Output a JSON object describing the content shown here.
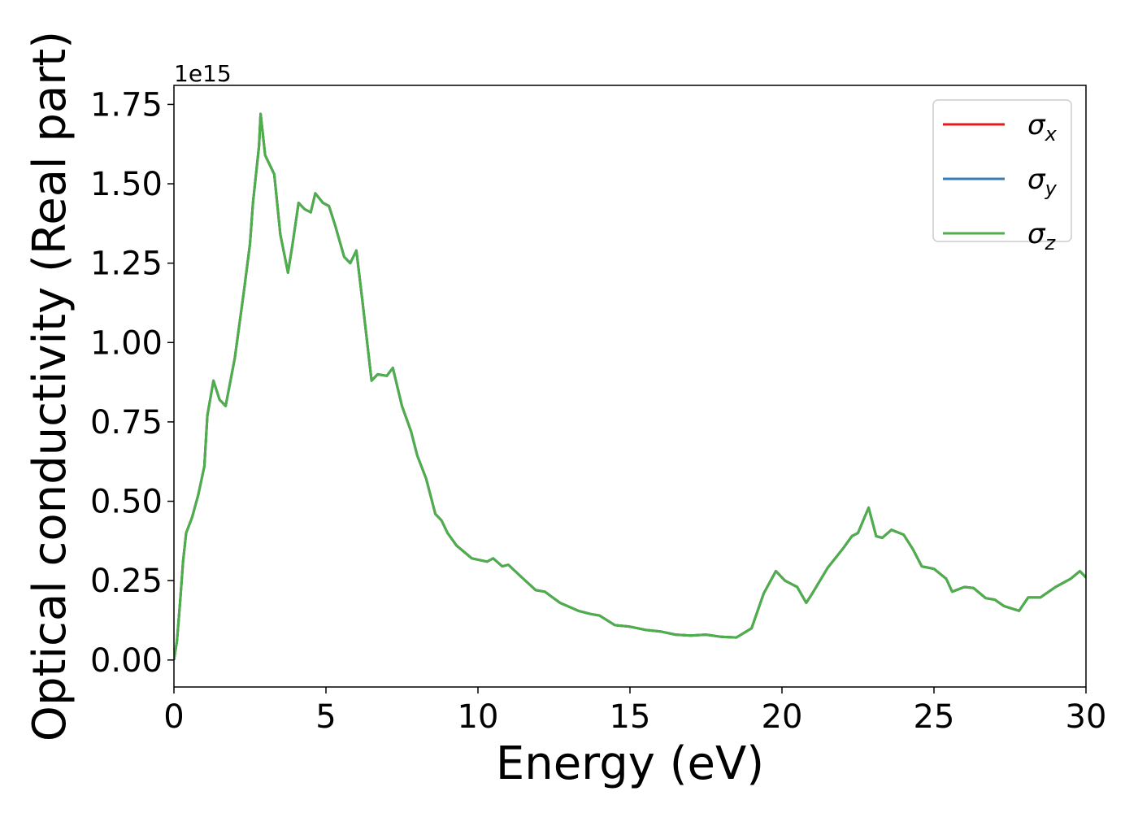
{
  "chart_data": {
    "type": "line",
    "xlabel": "Energy (eV)",
    "ylabel": "Optical conductivity (Real part)",
    "y_offset_label": "1e15",
    "xlim": [
      0,
      30
    ],
    "ylim": [
      -0.085,
      1.81
    ],
    "xticks": [
      0,
      5,
      10,
      15,
      20,
      25,
      30
    ],
    "yticks": [
      {
        "value": 0,
        "label": "0.00"
      },
      {
        "value": 0.25,
        "label": "0.25"
      },
      {
        "value": 0.5,
        "label": "0.50"
      },
      {
        "value": 0.75,
        "label": "0.75"
      },
      {
        "value": 1,
        "label": "1.00"
      },
      {
        "value": 1.25,
        "label": "1.25"
      },
      {
        "value": 1.5,
        "label": "1.50"
      },
      {
        "value": 1.75,
        "label": "1.75"
      }
    ],
    "legend": "upper right",
    "grid": false,
    "x": [
      0,
      0.1,
      0.2,
      0.3,
      0.4,
      0.6,
      0.8,
      1.0,
      1.1,
      1.3,
      1.5,
      1.7,
      2.0,
      2.3,
      2.5,
      2.6,
      2.8,
      2.85,
      3.0,
      3.1,
      3.3,
      3.5,
      3.75,
      3.9,
      4.1,
      4.3,
      4.5,
      4.65,
      4.9,
      5.1,
      5.3,
      5.6,
      5.8,
      6.0,
      6.2,
      6.5,
      6.7,
      7.0,
      7.2,
      7.5,
      7.8,
      8.0,
      8.3,
      8.6,
      8.8,
      9.0,
      9.3,
      9.8,
      10.3,
      10.5,
      10.8,
      11.0,
      11.5,
      11.9,
      12.2,
      12.7,
      13.3,
      13.7,
      14.0,
      14.5,
      15.0,
      15.5,
      16.0,
      16.5,
      17.0,
      17.5,
      18.0,
      18.5,
      19.0,
      19.4,
      19.8,
      20.1,
      20.5,
      20.8,
      21.0,
      21.5,
      22.0,
      22.3,
      22.5,
      22.85,
      23.1,
      23.3,
      23.6,
      24.0,
      24.3,
      24.6,
      25.0,
      25.4,
      25.6,
      26.0,
      26.3,
      26.7,
      27.0,
      27.3,
      27.8,
      28.1,
      28.5,
      29.0,
      29.5,
      29.8,
      30.0
    ],
    "series": [
      {
        "name": "σx",
        "color": "#e41a1c",
        "values": [
          0,
          0.06,
          0.18,
          0.31,
          0.4,
          0.45,
          0.52,
          0.61,
          0.77,
          0.88,
          0.82,
          0.8,
          0.95,
          1.16,
          1.31,
          1.44,
          1.62,
          1.72,
          1.59,
          1.57,
          1.53,
          1.34,
          1.22,
          1.31,
          1.44,
          1.42,
          1.41,
          1.47,
          1.44,
          1.43,
          1.37,
          1.27,
          1.25,
          1.29,
          1.13,
          0.88,
          0.9,
          0.895,
          0.92,
          0.8,
          0.72,
          0.645,
          0.57,
          0.46,
          0.44,
          0.4,
          0.36,
          0.32,
          0.31,
          0.32,
          0.295,
          0.3,
          0.255,
          0.22,
          0.215,
          0.18,
          0.155,
          0.145,
          0.14,
          0.11,
          0.105,
          0.095,
          0.09,
          0.08,
          0.077,
          0.08,
          0.073,
          0.071,
          0.1,
          0.21,
          0.28,
          0.25,
          0.23,
          0.18,
          0.21,
          0.29,
          0.35,
          0.39,
          0.4,
          0.48,
          0.39,
          0.385,
          0.41,
          0.395,
          0.35,
          0.295,
          0.287,
          0.256,
          0.215,
          0.23,
          0.227,
          0.195,
          0.19,
          0.17,
          0.155,
          0.197,
          0.197,
          0.23,
          0.256,
          0.28,
          0.26
        ]
      },
      {
        "name": "σy",
        "color": "#377eb8",
        "values": [
          0,
          0.06,
          0.18,
          0.31,
          0.4,
          0.45,
          0.52,
          0.61,
          0.77,
          0.88,
          0.82,
          0.8,
          0.95,
          1.16,
          1.31,
          1.44,
          1.62,
          1.72,
          1.59,
          1.57,
          1.53,
          1.34,
          1.22,
          1.31,
          1.44,
          1.42,
          1.41,
          1.47,
          1.44,
          1.43,
          1.37,
          1.27,
          1.25,
          1.29,
          1.13,
          0.88,
          0.9,
          0.895,
          0.92,
          0.8,
          0.72,
          0.645,
          0.57,
          0.46,
          0.44,
          0.4,
          0.36,
          0.32,
          0.31,
          0.32,
          0.295,
          0.3,
          0.255,
          0.22,
          0.215,
          0.18,
          0.155,
          0.145,
          0.14,
          0.11,
          0.105,
          0.095,
          0.09,
          0.08,
          0.077,
          0.08,
          0.073,
          0.071,
          0.1,
          0.21,
          0.28,
          0.25,
          0.23,
          0.18,
          0.21,
          0.29,
          0.35,
          0.39,
          0.4,
          0.48,
          0.39,
          0.385,
          0.41,
          0.395,
          0.35,
          0.295,
          0.287,
          0.256,
          0.215,
          0.23,
          0.227,
          0.195,
          0.19,
          0.17,
          0.155,
          0.197,
          0.197,
          0.23,
          0.256,
          0.28,
          0.26
        ]
      },
      {
        "name": "σz",
        "color": "#4daf4a",
        "values": [
          0,
          0.06,
          0.18,
          0.31,
          0.4,
          0.45,
          0.52,
          0.61,
          0.77,
          0.88,
          0.82,
          0.8,
          0.95,
          1.16,
          1.31,
          1.44,
          1.62,
          1.72,
          1.59,
          1.57,
          1.53,
          1.34,
          1.22,
          1.31,
          1.44,
          1.42,
          1.41,
          1.47,
          1.44,
          1.43,
          1.37,
          1.27,
          1.25,
          1.29,
          1.13,
          0.88,
          0.9,
          0.895,
          0.92,
          0.8,
          0.72,
          0.645,
          0.57,
          0.46,
          0.44,
          0.4,
          0.36,
          0.32,
          0.31,
          0.32,
          0.295,
          0.3,
          0.255,
          0.22,
          0.215,
          0.18,
          0.155,
          0.145,
          0.14,
          0.11,
          0.105,
          0.095,
          0.09,
          0.08,
          0.077,
          0.08,
          0.073,
          0.071,
          0.1,
          0.21,
          0.28,
          0.25,
          0.23,
          0.18,
          0.21,
          0.29,
          0.35,
          0.39,
          0.4,
          0.48,
          0.39,
          0.385,
          0.41,
          0.395,
          0.35,
          0.295,
          0.287,
          0.256,
          0.215,
          0.23,
          0.227,
          0.195,
          0.19,
          0.17,
          0.155,
          0.197,
          0.197,
          0.23,
          0.256,
          0.28,
          0.26
        ]
      }
    ]
  }
}
